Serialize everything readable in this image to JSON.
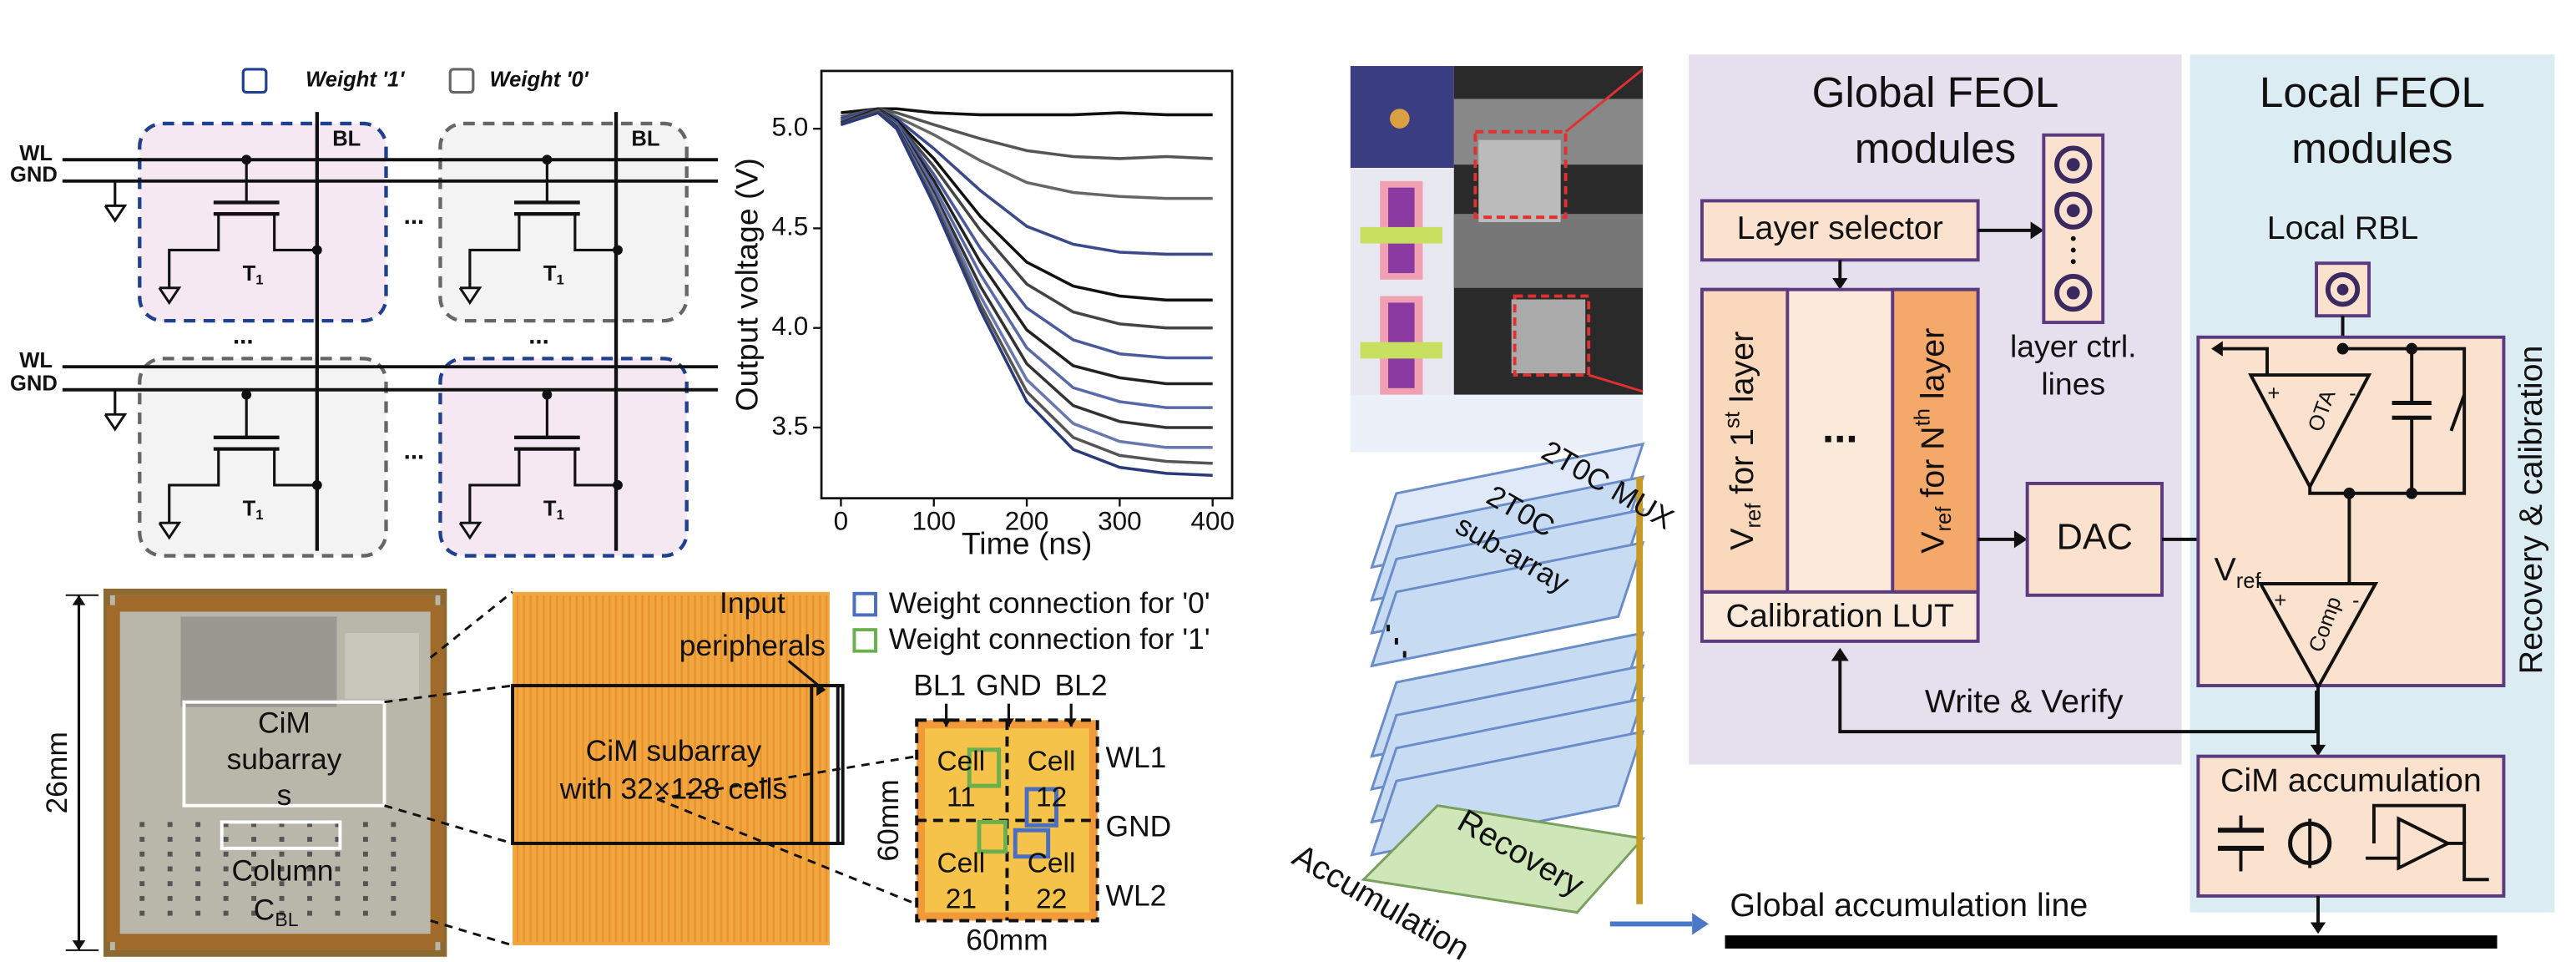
{
  "cell_array": {
    "legend": [
      "Weight '1'",
      "Weight '0'"
    ],
    "wl": "WL",
    "gnd": "GND",
    "bl": "BL",
    "transistor": {
      "base": "T",
      "sub": "1"
    },
    "ellipsis": "..."
  },
  "plot": {
    "type": "line",
    "x_label": "Time (ns)",
    "y_label": "Output voltage (V)",
    "x": [
      0,
      40,
      60,
      100,
      150,
      200,
      250,
      300,
      350,
      400
    ],
    "xlim": [
      -21,
      421
    ],
    "ylim": [
      3.145,
      5.29
    ],
    "xticks": [
      0,
      100,
      200,
      300,
      400
    ],
    "yticks": [
      3.5,
      {
        "value": 4,
        "label": "4.0"
      },
      {
        "value": 4.5,
        "label": "4.5"
      },
      {
        "value": 5,
        "label": "5.0"
      }
    ],
    "series": [
      {
        "color": "#111111",
        "values": [
          5.08,
          5.1,
          5.1,
          5.08,
          5.07,
          5.07,
          5.07,
          5.08,
          5.07,
          5.07
        ]
      },
      {
        "color": "#555555",
        "values": [
          5.06,
          5.1,
          5.08,
          5.02,
          4.95,
          4.89,
          4.86,
          4.85,
          4.86,
          4.85
        ]
      },
      {
        "color": "#666666",
        "values": [
          5.05,
          5.1,
          5.06,
          4.97,
          4.84,
          4.73,
          4.68,
          4.66,
          4.65,
          4.65
        ]
      },
      {
        "color": "#3b4a8a",
        "values": [
          5.05,
          5.1,
          5.05,
          4.9,
          4.69,
          4.51,
          4.42,
          4.38,
          4.37,
          4.37
        ]
      },
      {
        "color": "#111111",
        "values": [
          5.04,
          5.1,
          5.04,
          4.85,
          4.56,
          4.33,
          4.21,
          4.16,
          4.14,
          4.14
        ]
      },
      {
        "color": "#444444",
        "values": [
          5.04,
          5.1,
          5.03,
          4.81,
          4.49,
          4.22,
          4.08,
          4.02,
          4.0,
          4.0
        ]
      },
      {
        "color": "#4a5a9a",
        "values": [
          5.04,
          5.1,
          5.03,
          4.77,
          4.4,
          4.1,
          3.94,
          3.87,
          3.85,
          3.85
        ]
      },
      {
        "color": "#222222",
        "values": [
          5.03,
          5.1,
          5.02,
          4.74,
          4.33,
          3.99,
          3.81,
          3.75,
          3.72,
          3.72
        ]
      },
      {
        "color": "#5a6aa8",
        "values": [
          5.03,
          5.09,
          5.02,
          4.71,
          4.27,
          3.9,
          3.7,
          3.63,
          3.6,
          3.6
        ]
      },
      {
        "color": "#333333",
        "values": [
          5.03,
          5.09,
          5.01,
          4.68,
          4.21,
          3.82,
          3.61,
          3.53,
          3.5,
          3.5
        ]
      },
      {
        "color": "#6a78b0",
        "values": [
          5.02,
          5.09,
          5.0,
          4.66,
          4.16,
          3.74,
          3.52,
          3.43,
          3.4,
          3.4
        ]
      },
      {
        "color": "#555555",
        "values": [
          5.02,
          5.09,
          5.0,
          4.64,
          4.12,
          3.68,
          3.45,
          3.36,
          3.33,
          3.32
        ]
      },
      {
        "color": "#2a3a7a",
        "values": [
          5.02,
          5.08,
          5.0,
          4.62,
          4.09,
          3.63,
          3.39,
          3.3,
          3.27,
          3.26
        ]
      }
    ]
  },
  "die": {
    "height": "26mm",
    "subarray": [
      "CiM",
      "subarray",
      "s"
    ],
    "column": {
      "base": "Column",
      "c": "C",
      "sub": "BL"
    }
  },
  "zoom": {
    "input": [
      "Input",
      "peripherals"
    ],
    "subarray": [
      "CiM subarray",
      "with 32×128 cells"
    ],
    "legend": [
      {
        "color": "#4a6fc0",
        "label": "Weight connection for '0'"
      },
      {
        "color": "#6ab04c",
        "label": "Weight connection for '1'"
      }
    ],
    "bit_lines": [
      "BL1",
      "GND",
      "BL2"
    ],
    "cells": [
      [
        "Cell",
        "11"
      ],
      [
        "Cell",
        "12"
      ],
      [
        "Cell",
        "21"
      ],
      [
        "Cell",
        "22"
      ]
    ],
    "word_lines": [
      "WL1",
      "GND",
      "WL2"
    ],
    "size": "60mm"
  },
  "stack": {
    "mux": "2T0C MUX",
    "subarray": [
      "2T0C",
      "sub-array"
    ],
    "recovery": "Recovery",
    "accumulation": "Accumulation"
  },
  "block": {
    "global": {
      "title": [
        "Global FEOL",
        "modules"
      ],
      "layer_selector": "Layer selector",
      "ctrl": [
        "layer ctrl.",
        "lines"
      ],
      "vref_first": {
        "v": "V",
        "sub": "ref",
        "a": " for 1",
        "sup": "st",
        "b": " layer"
      },
      "vref_nth": {
        "v": "V",
        "sub": "ref",
        "a": " for N",
        "sup": "th",
        "b": " layer"
      },
      "dots": "...",
      "lut": "Calibration LUT",
      "dac": "DAC",
      "verify": "Write & Verify"
    },
    "local": {
      "title": [
        "Local FEOL",
        "modules"
      ],
      "rbl": "Local RBL",
      "ota": "OTA",
      "comp": "Comp",
      "vref": {
        "v": "V",
        "sub": "ref"
      },
      "plus": "+",
      "minus": "-",
      "recovery": "Recovery & calibration",
      "accumulation": "CiM accumulation"
    },
    "global_line": "Global accumulation line"
  }
}
